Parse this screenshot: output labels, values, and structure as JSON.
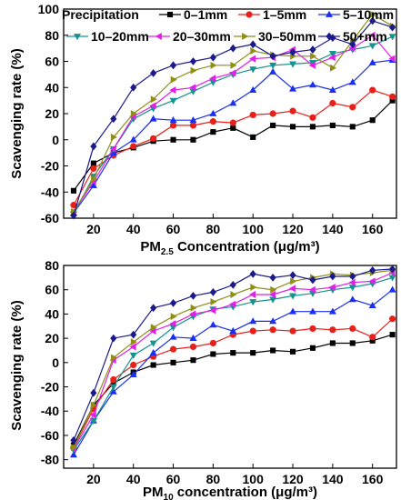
{
  "chart_data": [
    {
      "type": "line",
      "legend_title": "Precipitation",
      "xlabel_main": "PM",
      "xlabel_sub": "2.5",
      "xlabel_rest": " Concentration (μg/m³)",
      "ylabel": "Scavenging rate (%)",
      "xlim": [
        5,
        172
      ],
      "ylim": [
        -60,
        100
      ],
      "xticks": [
        20,
        40,
        60,
        80,
        100,
        120,
        140,
        160
      ],
      "yticks": [
        -60,
        -40,
        -20,
        0,
        20,
        40,
        60,
        80,
        100
      ],
      "x": [
        10,
        20,
        30,
        40,
        50,
        60,
        70,
        80,
        90,
        100,
        110,
        120,
        130,
        140,
        150,
        160,
        170
      ],
      "series": [
        {
          "name": "0–1mm",
          "color": "#000000",
          "marker": "square",
          "values": [
            -39,
            -18,
            -10,
            -6,
            -1,
            0,
            0,
            6,
            9,
            2,
            11,
            10,
            10,
            11,
            10,
            15,
            30
          ]
        },
        {
          "name": "1–5mm",
          "color": "#e8201a",
          "marker": "circle",
          "values": [
            -50,
            -22,
            -12,
            -5,
            1,
            11,
            11,
            14,
            13,
            19,
            20,
            22,
            17,
            28,
            25,
            38,
            33
          ]
        },
        {
          "name": "5–10mm",
          "color": "#1a2ff0",
          "marker": "triangle-up",
          "values": [
            -56,
            -35,
            -10,
            0,
            16,
            15,
            15,
            20,
            28,
            38,
            52,
            39,
            42,
            38,
            44,
            59,
            61
          ]
        },
        {
          "name": "10–20mm",
          "color": "#14938f",
          "marker": "triangle-down",
          "values": [
            -57,
            -28,
            -7,
            16,
            24,
            30,
            37,
            44,
            50,
            54,
            57,
            58,
            59,
            66,
            69,
            72,
            79
          ]
        },
        {
          "name": "20–30mm",
          "color": "#e020e8",
          "marker": "triangle-left",
          "values": [
            -55,
            -32,
            -7,
            18,
            26,
            38,
            40,
            47,
            51,
            62,
            63,
            69,
            57,
            63,
            70,
            80,
            62
          ]
        },
        {
          "name": "30–50mm",
          "color": "#8f8f17",
          "marker": "triangle-right",
          "values": [
            -55,
            -30,
            2,
            20,
            31,
            46,
            53,
            57,
            57,
            68,
            65,
            64,
            64,
            55,
            76,
            96,
            87
          ]
        },
        {
          "name": "50+mm",
          "color": "#1a1a8c",
          "marker": "diamond",
          "values": [
            -58,
            -5,
            16,
            40,
            51,
            57,
            60,
            63,
            70,
            73,
            64,
            67,
            69,
            78,
            73,
            91,
            86
          ]
        }
      ]
    },
    {
      "type": "line",
      "xlabel_main": "PM",
      "xlabel_sub": "10",
      "xlabel_rest": " concentration (μg/m³)",
      "ylabel": "Scavenging rate (%)",
      "xlim": [
        5,
        172
      ],
      "ylim": [
        -87,
        80
      ],
      "xticks": [
        20,
        40,
        60,
        80,
        100,
        120,
        140,
        160
      ],
      "yticks": [
        -80,
        -60,
        -40,
        -20,
        0,
        20,
        40,
        60,
        80
      ],
      "x": [
        10,
        20,
        30,
        40,
        50,
        60,
        70,
        80,
        90,
        100,
        110,
        120,
        130,
        140,
        150,
        160,
        170
      ],
      "series": [
        {
          "name": "0–1mm",
          "color": "#000000",
          "marker": "square",
          "values": [
            -68,
            -35,
            -17,
            -8,
            -2,
            0,
            2,
            7,
            8,
            8,
            10,
            9,
            12,
            16,
            16,
            18,
            23
          ]
        },
        {
          "name": "1–5mm",
          "color": "#e8201a",
          "marker": "circle",
          "values": [
            -70,
            -38,
            -14,
            -2,
            5,
            11,
            13,
            16,
            23,
            26,
            27,
            26,
            28,
            27,
            28,
            21,
            36
          ]
        },
        {
          "name": "5–10mm",
          "color": "#1a2ff0",
          "marker": "triangle-up",
          "values": [
            -76,
            -48,
            -24,
            -10,
            8,
            21,
            20,
            31,
            26,
            34,
            34,
            42,
            42,
            42,
            52,
            47,
            60
          ]
        },
        {
          "name": "10–20mm",
          "color": "#14938f",
          "marker": "triangle-down",
          "values": [
            -72,
            -48,
            -20,
            6,
            16,
            29,
            38,
            44,
            46,
            50,
            52,
            55,
            57,
            60,
            62,
            65,
            70
          ]
        },
        {
          "name": "20–30mm",
          "color": "#e020e8",
          "marker": "triangle-left",
          "values": [
            -71,
            -43,
            2,
            13,
            26,
            32,
            40,
            43,
            48,
            56,
            56,
            61,
            60,
            62,
            66,
            67,
            74
          ]
        },
        {
          "name": "30–50mm",
          "color": "#8f8f17",
          "marker": "triangle-right",
          "values": [
            -70,
            -35,
            4,
            17,
            29,
            38,
            45,
            50,
            56,
            62,
            60,
            67,
            70,
            73,
            72,
            74,
            76
          ]
        },
        {
          "name": "50+mm",
          "color": "#1a1a8c",
          "marker": "diamond",
          "values": [
            -64,
            -25,
            20,
            23,
            45,
            49,
            55,
            58,
            64,
            73,
            70,
            72,
            68,
            71,
            71,
            76,
            77
          ]
        }
      ]
    }
  ]
}
